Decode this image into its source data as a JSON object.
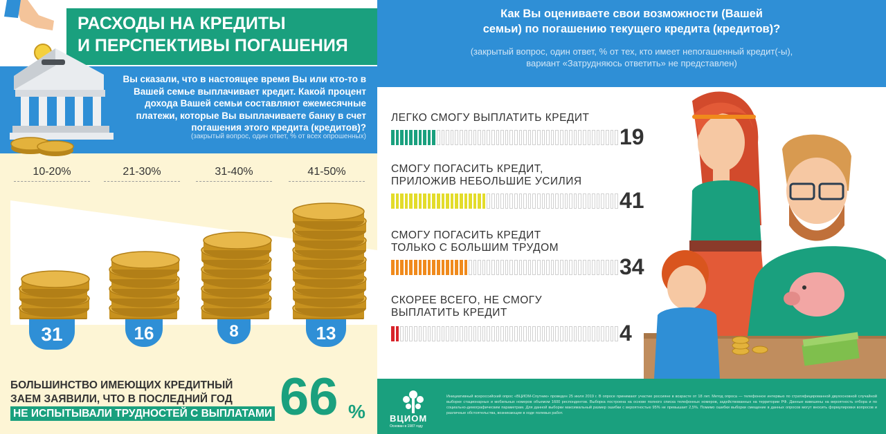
{
  "left": {
    "title_lines": [
      "РАСХОДЫ НА КРЕДИТЫ",
      "И ПЕРСПЕКТИВЫ ПОГАШЕНИЯ"
    ],
    "question": "Вы сказали, что в настоящее время Вы или кто-то в Вашей семье выплачивает кредит. Какой процент дохода Вашей семьи составляют ежемесячные платежи, которые Вы выплачиваете банку в счет погашения этого кредита (кредитов)?",
    "question_note": "(закрытый вопрос, один ответ, % от всех опрошенных)",
    "ranges": [
      {
        "label": "10-20%",
        "value": "31"
      },
      {
        "label": "21-30%",
        "value": "16"
      },
      {
        "label": "31-40%",
        "value": "8"
      },
      {
        "label": "41-50%",
        "value": "13"
      }
    ],
    "summary_lines": [
      "БОЛЬШИНСТВО ИМЕЮЩИХ КРЕДИТНЫЙ",
      "ЗАЕМ ЗАЯВИЛИ, ЧТО В ПОСЛЕДНИЙ ГОД"
    ],
    "summary_highlight": "НЕ ИСПЫТЫВАЛИ ТРУДНОСТЕЙ С ВЫПЛАТАМИ",
    "big_value": "66",
    "big_unit": "%"
  },
  "right": {
    "question": "Как Вы оцениваете свои возможности (Вашей семьи) по погашению текущего кредита (кредитов)?",
    "note_lines": [
      "(закрытый вопрос, один ответ, % от тех, кто имеет непогашенный кредит(-ы),",
      "вариант «Затрудняюсь ответить» не представлен)"
    ],
    "answers": [
      {
        "lines": [
          "ЛЕГКО СМОГУ ВЫПЛАТИТЬ КРЕДИТ"
        ],
        "value": "19",
        "percent": 19,
        "color": "#1aa07e"
      },
      {
        "lines": [
          "СМОГУ ПОГАСИТЬ КРЕДИТ,",
          "ПРИЛОЖИВ НЕБОЛЬШИЕ УСИЛИЯ"
        ],
        "value": "41",
        "percent": 41,
        "color": "#e3dc2a"
      },
      {
        "lines": [
          "СМОГУ ПОГАСИТЬ КРЕДИТ",
          "ТОЛЬКО С БОЛЬШИМ ТРУДОМ"
        ],
        "value": "34",
        "percent": 34,
        "color": "#f08a1c"
      },
      {
        "lines": [
          "СКОРЕЕ ВСЕГО, НЕ СМОГУ",
          "ВЫПЛАТИТЬ КРЕДИТ"
        ],
        "value": "4",
        "percent": 4,
        "color": "#d8232a"
      }
    ]
  },
  "footer": {
    "logo_name": "ВЦИОМ",
    "logo_sub": "Основан в 1987 году",
    "text": "Инициативный всероссийский опрос «ВЦИОМ-Спутник» проведен 25 июля 2019 г. В опросе принимают участие россияне в возрасте от 18 лет. Метод опроса — телефонное интервью по стратифицированной двухосновной случайной выборке стационарных и мобильных номеров объемом 1600 респондентов. Выборка построена на основе полного списка телефонных номеров, задействованных на территории РФ. Данные взвешены на вероятность отбора и по социально-демографическим параметрам. Для данной выборки максимальный размер ошибки с вероятностью 95% не превышает 2,5%. Помимо ошибки выборки смещение в данных опросов могут вносить формулировки вопросов и различные обстоятельства, возникающие в ходе полевых работ."
  },
  "colors": {
    "green": "#1aa07e",
    "blue": "#2f8fd6",
    "cream": "#fdf5d5",
    "coin": "#d9a52a"
  },
  "icons": [
    "bank-piggybank-illustration",
    "coin-stack",
    "family-illustration",
    "vciom-tree-logo"
  ]
}
